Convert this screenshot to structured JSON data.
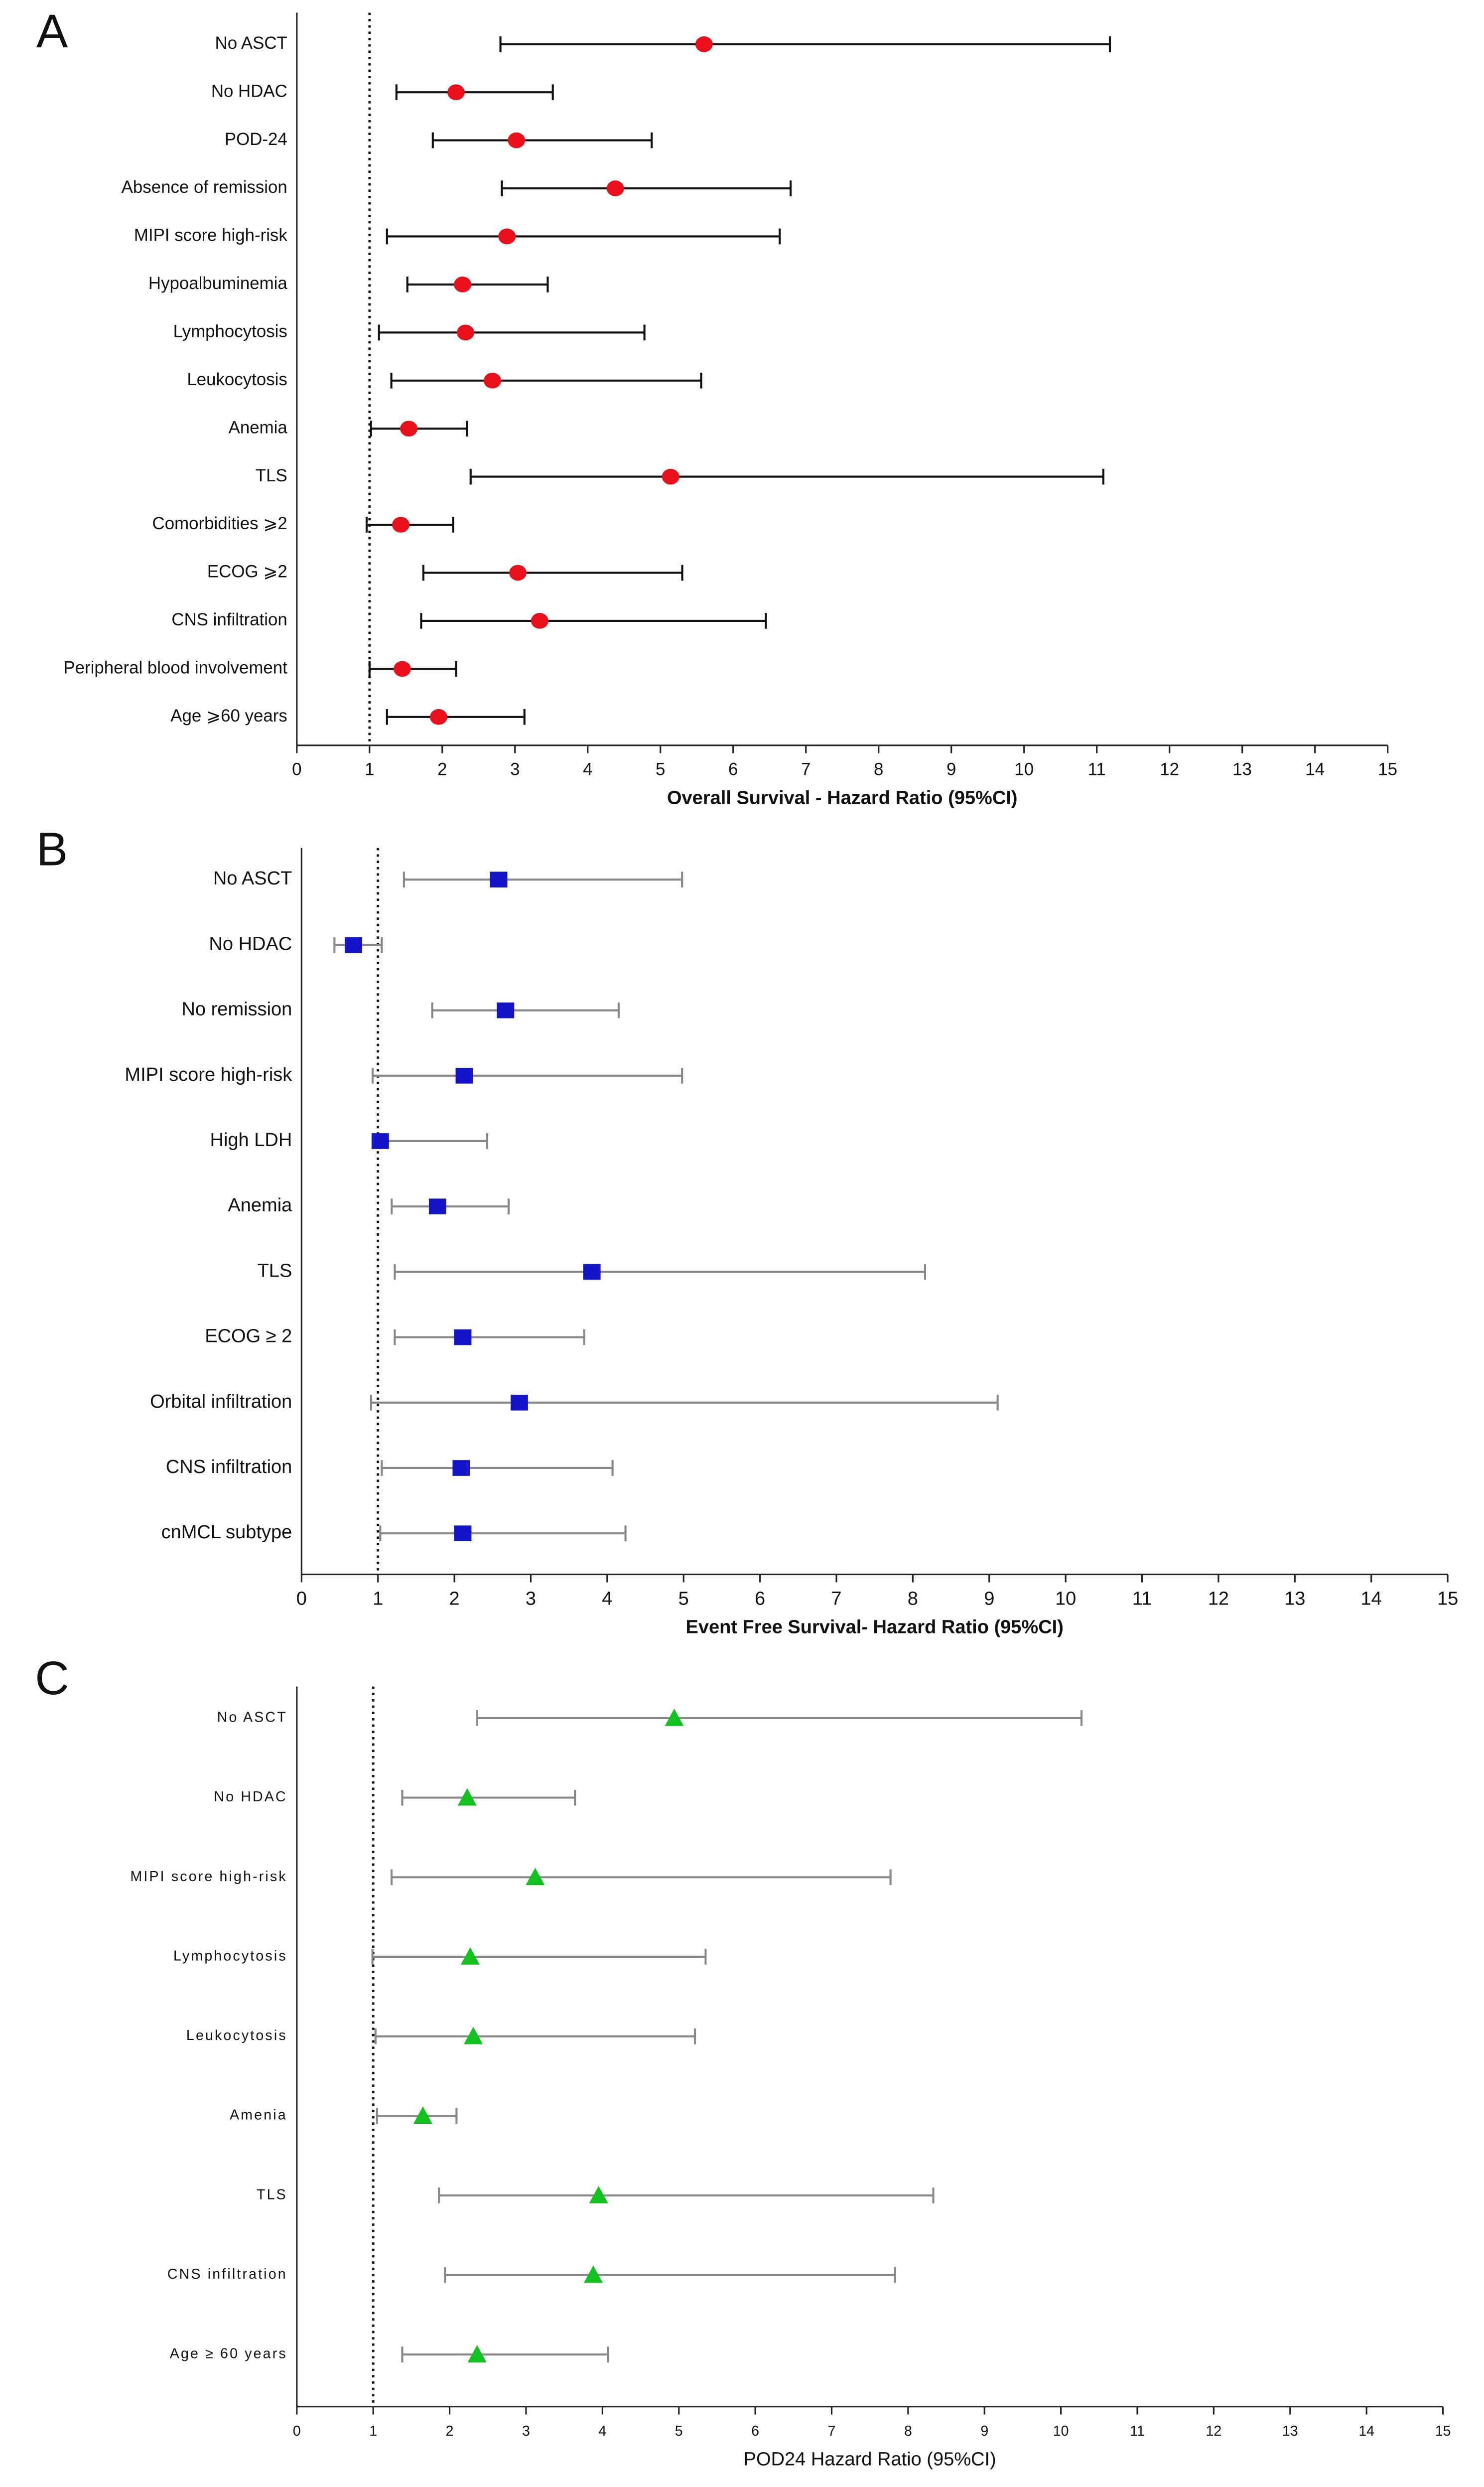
{
  "chart_data": [
    {
      "type": "forest",
      "panel": "A",
      "xlabel": "Overall Survival - Hazard Ratio (95%CI)",
      "categories": [
        "No ASCT",
        "No HDAC",
        "POD-24",
        "Absence of remission",
        "MIPI score high-risk",
        "Hypoalbuminemia",
        "Lymphocytosis",
        "Leukocytosis",
        "Anemia",
        "TLS",
        "Comorbidities ⩾2",
        "ECOG ⩾2",
        "CNS infiltration",
        "Peripheral blood involvement",
        "Age ⩾60 years"
      ],
      "values": [
        5.6,
        2.19,
        3.02,
        4.38,
        2.89,
        2.28,
        2.32,
        2.69,
        1.54,
        5.14,
        1.43,
        3.04,
        3.34,
        1.45,
        1.95
      ],
      "lower": [
        2.8,
        1.37,
        1.87,
        2.82,
        1.24,
        1.52,
        1.13,
        1.3,
        1.02,
        2.39,
        0.96,
        1.74,
        1.71,
        1.0,
        1.24
      ],
      "upper": [
        11.18,
        3.52,
        4.88,
        6.79,
        6.64,
        3.45,
        4.78,
        5.56,
        2.34,
        11.09,
        2.15,
        5.3,
        6.45,
        2.19,
        3.13
      ],
      "marker": "circle",
      "color": "#e8101a",
      "ci_color": "#111111",
      "reference_line": 1,
      "xlim": [
        0,
        15
      ],
      "xticks": [
        0,
        1,
        2,
        3,
        4,
        5,
        6,
        7,
        8,
        9,
        10,
        11,
        12,
        13,
        14,
        15
      ]
    },
    {
      "type": "forest",
      "panel": "B",
      "xlabel": "Event Free Survival- Hazard Ratio (95%CI)",
      "categories": [
        "No ASCT",
        "No HDAC",
        "No  remission",
        "MIPI score high-risk",
        "High LDH",
        "Anemia",
        "TLS",
        "ECOG ≥ 2",
        "Orbital infiltration",
        "CNS infiltration",
        "cnMCL subtype"
      ],
      "values": [
        2.58,
        0.68,
        2.67,
        2.13,
        1.03,
        1.78,
        3.8,
        2.11,
        2.85,
        2.09,
        2.11
      ],
      "lower": [
        1.34,
        0.43,
        1.71,
        0.93,
        1.02,
        1.18,
        1.22,
        1.22,
        0.91,
        1.05,
        1.03
      ],
      "upper": [
        4.98,
        1.05,
        4.15,
        4.98,
        2.43,
        2.71,
        8.16,
        3.7,
        9.11,
        4.07,
        4.24
      ],
      "marker": "square",
      "color": "#1414c8",
      "ci_color": "#888888",
      "reference_line": 1,
      "xlim": [
        0,
        15
      ],
      "xticks": [
        0,
        1,
        2,
        3,
        4,
        5,
        6,
        7,
        8,
        9,
        10,
        11,
        12,
        13,
        14,
        15
      ]
    },
    {
      "type": "forest",
      "panel": "C",
      "xlabel": "POD24 Hazard Ratio (95%CI)",
      "categories": [
        "No ASCT",
        "No HDAC",
        "MIPI score high-risk",
        "Lymphocytosis",
        "Leukocytosis",
        "Amenia",
        "TLS",
        "CNS infiltration",
        "Age ≥ 60 years"
      ],
      "values": [
        4.94,
        2.23,
        3.12,
        2.27,
        2.31,
        1.65,
        3.95,
        3.88,
        2.36
      ],
      "lower": [
        2.36,
        1.38,
        1.24,
        0.99,
        1.03,
        1.05,
        1.86,
        1.94,
        1.38
      ],
      "upper": [
        10.27,
        3.64,
        7.77,
        5.35,
        5.21,
        2.09,
        8.33,
        7.83,
        4.07
      ],
      "marker": "triangle",
      "color": "#12c21e",
      "ci_color": "#888888",
      "reference_line": 1,
      "xlim": [
        0,
        15
      ],
      "xticks": [
        0,
        1,
        2,
        3,
        4,
        5,
        6,
        7,
        8,
        9,
        10,
        11,
        12,
        13,
        14,
        15
      ]
    }
  ]
}
